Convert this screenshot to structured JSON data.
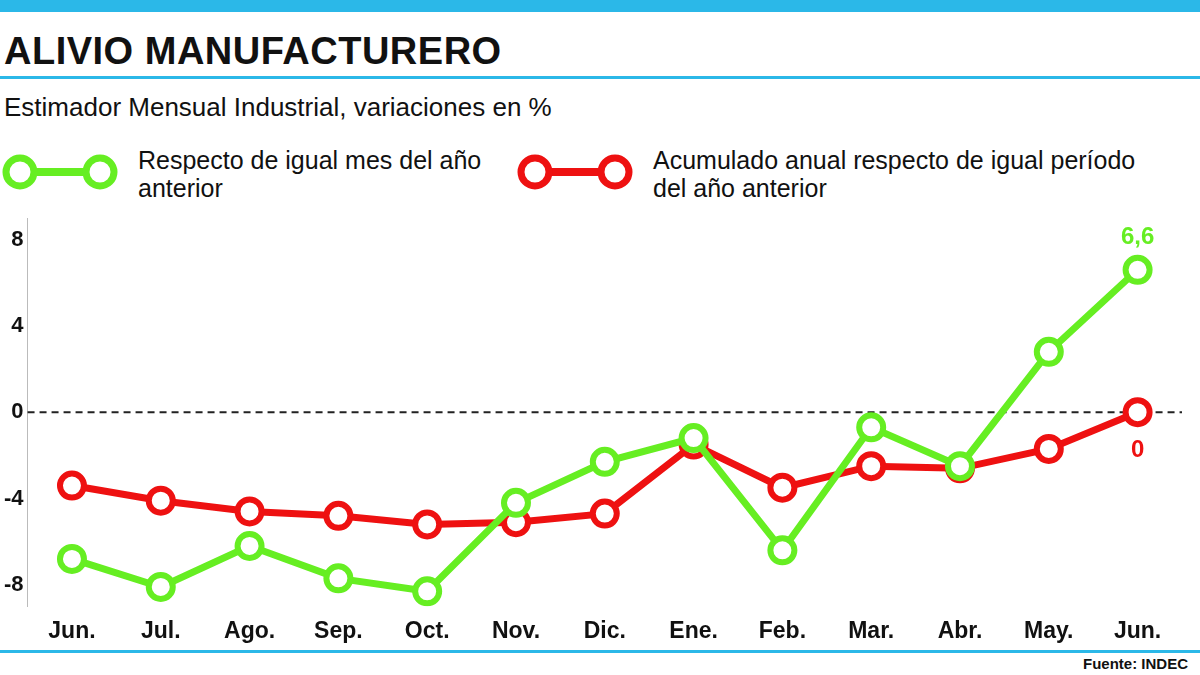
{
  "chart_data": {
    "type": "line",
    "title": "ALIVIO MANUFACTURERO",
    "subtitle": "Estimador Mensual Industrial, variaciones en %",
    "source": "Fuente: INDEC",
    "categories": [
      "Jun.",
      "Jul.",
      "Ago.",
      "Sep.",
      "Oct.",
      "Nov.",
      "Dic.",
      "Ene.",
      "Feb.",
      "Mar.",
      "Abr.",
      "May.",
      "Jun."
    ],
    "series": [
      {
        "name": "Respecto de igual mes del año anterior",
        "color": "#66ee22",
        "marker": "circle",
        "line_style": "solid",
        "values": [
          -6.8,
          -8.1,
          -6.2,
          -7.7,
          -8.3,
          -4.2,
          -2.3,
          -1.2,
          -6.4,
          -0.7,
          -2.5,
          2.8,
          6.6
        ],
        "value_labels": [
          null,
          null,
          null,
          null,
          null,
          null,
          null,
          null,
          null,
          null,
          null,
          null,
          "6,6"
        ]
      },
      {
        "name": "Acumulado anual respecto de igual período del año anterior",
        "color": "#ee1111",
        "marker": "circle",
        "line_style": "solid",
        "values": [
          -3.4,
          -4.1,
          -4.6,
          -4.8,
          -5.2,
          -5.1,
          -4.7,
          -1.5,
          -3.5,
          -2.5,
          -2.6,
          -1.7,
          0
        ],
        "value_labels": [
          null,
          null,
          null,
          null,
          null,
          null,
          null,
          null,
          null,
          null,
          null,
          null,
          "0"
        ]
      }
    ],
    "ylim": [
      -9,
      9
    ],
    "yticks": [
      -8,
      -4,
      0,
      4,
      8
    ],
    "grid": false,
    "legend": "top"
  }
}
